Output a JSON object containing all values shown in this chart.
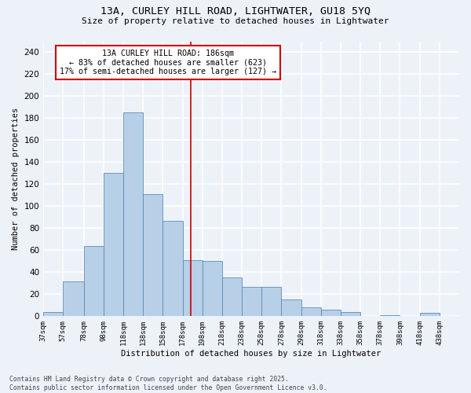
{
  "title_line1": "13A, CURLEY HILL ROAD, LIGHTWATER, GU18 5YQ",
  "title_line2": "Size of property relative to detached houses in Lightwater",
  "xlabel": "Distribution of detached houses by size in Lightwater",
  "ylabel": "Number of detached properties",
  "bins": [
    37,
    57,
    78,
    98,
    118,
    138,
    158,
    178,
    198,
    218,
    238,
    258,
    278,
    298,
    318,
    338,
    358,
    378,
    398,
    418,
    438,
    458
  ],
  "counts": [
    4,
    32,
    64,
    130,
    185,
    111,
    87,
    51,
    50,
    35,
    27,
    27,
    15,
    8,
    6,
    4,
    0,
    1,
    0,
    3,
    0
  ],
  "bar_color": "#b8cfe8",
  "bar_edge_color": "#5b8db8",
  "property_size": 186,
  "annotation_title": "13A CURLEY HILL ROAD: 186sqm",
  "annotation_line2": "← 83% of detached houses are smaller (623)",
  "annotation_line3": "17% of semi-detached houses are larger (127) →",
  "annotation_box_color": "#ffffff",
  "annotation_box_edge_color": "#cc0000",
  "vline_color": "#cc0000",
  "ylim": [
    0,
    250
  ],
  "yticks": [
    0,
    20,
    40,
    60,
    80,
    100,
    120,
    140,
    160,
    180,
    200,
    220,
    240
  ],
  "tick_labels": [
    "37sqm",
    "57sqm",
    "78sqm",
    "98sqm",
    "118sqm",
    "138sqm",
    "158sqm",
    "178sqm",
    "198sqm",
    "218sqm",
    "238sqm",
    "258sqm",
    "278sqm",
    "298sqm",
    "318sqm",
    "338sqm",
    "358sqm",
    "378sqm",
    "398sqm",
    "418sqm",
    "438sqm"
  ],
  "footer_line1": "Contains HM Land Registry data © Crown copyright and database right 2025.",
  "footer_line2": "Contains public sector information licensed under the Open Government Licence v3.0.",
  "background_color": "#edf2f9",
  "grid_color": "#ffffff",
  "font_family": "DejaVu Sans Mono"
}
